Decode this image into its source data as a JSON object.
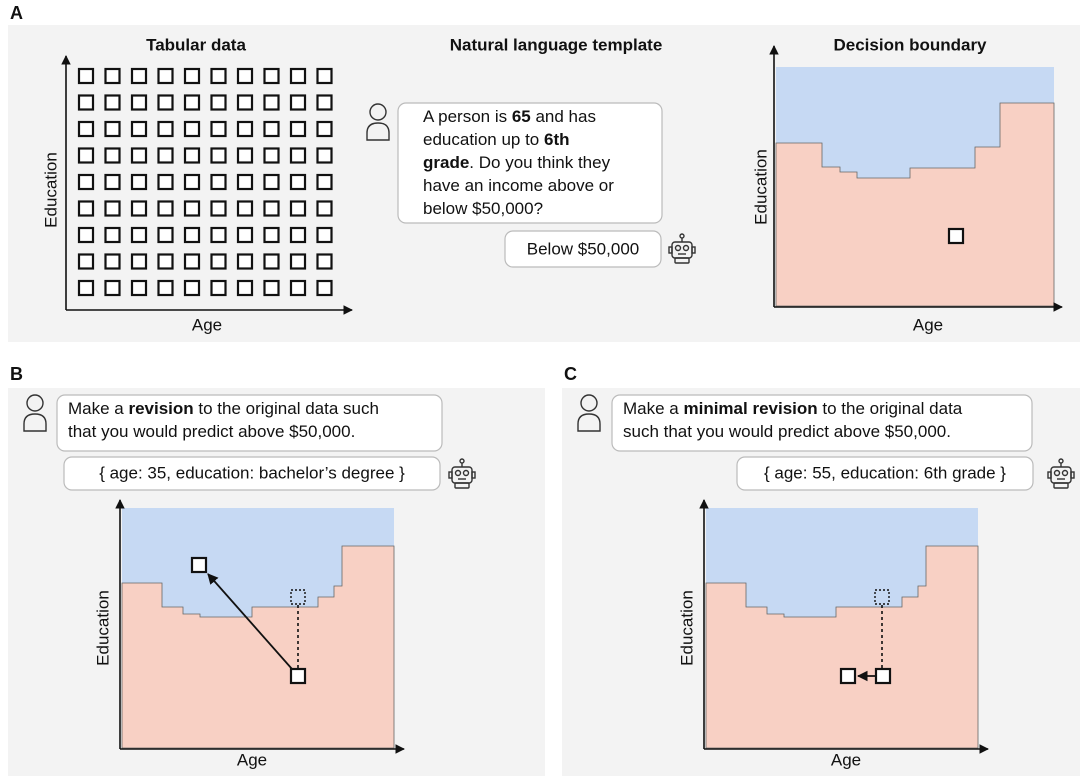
{
  "panel_a": {
    "label": "A",
    "tabular_title": "Tabular data",
    "template_title": "Natural language template",
    "boundary_title": "Decision boundary",
    "tabular_y_label": "Education",
    "tabular_x_label": "Age",
    "boundary_y_label": "Education",
    "boundary_x_label": "Age",
    "prompt": [
      [
        {
          "text": "A person is "
        },
        {
          "text": "65",
          "bold": true
        },
        {
          "text": " and has"
        }
      ],
      [
        {
          "text": "education up to "
        },
        {
          "text": "6th",
          "bold": true
        }
      ],
      [
        {
          "text": "grade",
          "bold": true
        },
        {
          "text": ". Do you think they"
        }
      ],
      [
        {
          "text": "have an income above or"
        }
      ],
      [
        {
          "text": "below $50,000?"
        }
      ]
    ],
    "reply": "Below $50,000"
  },
  "panel_b": {
    "label": "B",
    "prompt": [
      [
        {
          "text": "Make a "
        },
        {
          "text": "revision",
          "bold": true
        },
        {
          "text": " to the original data such"
        }
      ],
      [
        {
          "text": "that you would predict above $50,000."
        }
      ]
    ],
    "reply": "{ age: 35, education: bachelor’s degree }",
    "y_label": "Education",
    "x_label": "Age"
  },
  "panel_c": {
    "label": "C",
    "prompt": [
      [
        {
          "text": "Make a "
        },
        {
          "text": "minimal revision",
          "bold": true
        },
        {
          "text": " to the original data"
        }
      ],
      [
        {
          "text": "such that you would predict above $50,000."
        }
      ]
    ],
    "reply": "{ age: 55, education: 6th grade }",
    "y_label": "Education",
    "x_label": "Age"
  }
}
